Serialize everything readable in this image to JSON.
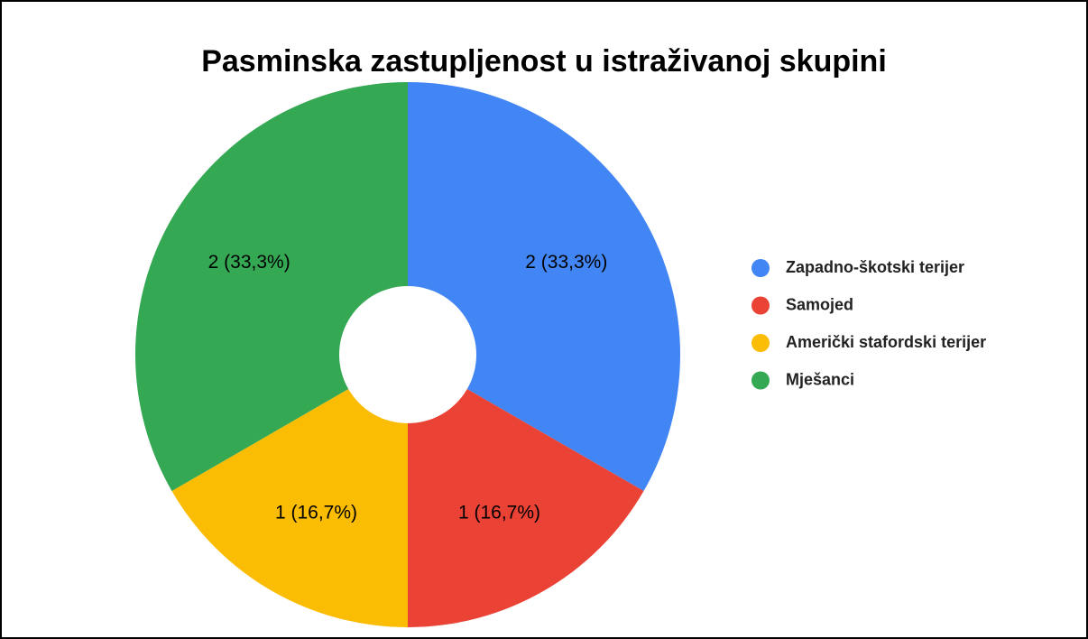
{
  "chart_data": {
    "type": "pie",
    "title": "Pasminska zastupljenost u istraživanoj skupini",
    "categories": [
      "Zapadno-škotski terijer",
      "Samojed",
      "Američki stafordski terijer",
      "Mješanci"
    ],
    "values": [
      2,
      1,
      1,
      2
    ],
    "value_labels": [
      "2 (33,3%)",
      "1 (16,7%)",
      "1 (16,7%)",
      "2 (33,3%)"
    ],
    "colors": [
      "#4285f4",
      "#ea4335",
      "#fbbc04",
      "#34a853"
    ],
    "donut": true,
    "legend": "right"
  }
}
